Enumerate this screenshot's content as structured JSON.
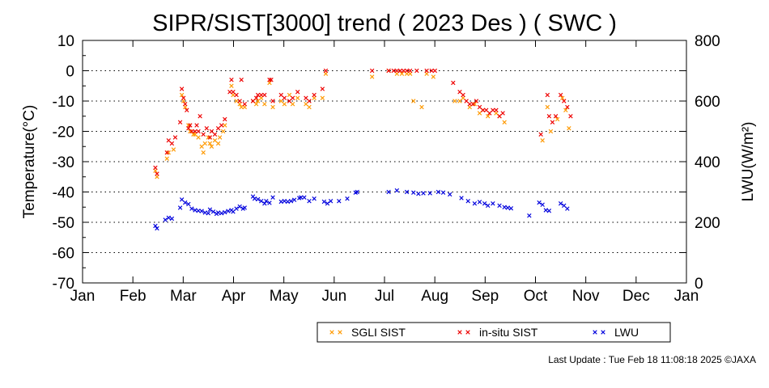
{
  "chart_data": {
    "type": "scatter",
    "title": "SIPR/SIST[3000] trend ( 2023 Des ) ( SWC )",
    "ylabel": "Temperature(°C)",
    "y2label": "LWU(W/m²)",
    "xlabel": "",
    "months": [
      "Jan",
      "Feb",
      "Mar",
      "Apr",
      "May",
      "Jun",
      "Jul",
      "Aug",
      "Sep",
      "Oct",
      "Nov",
      "Dec",
      "Jan"
    ],
    "ylim": [
      -70,
      10
    ],
    "y2lim": [
      0,
      800
    ],
    "yticks": [
      "10",
      "0",
      "-10",
      "-20",
      "-30",
      "-40",
      "-50",
      "-60",
      "-70"
    ],
    "y2ticks": [
      "800",
      "600",
      "400",
      "200",
      "0"
    ],
    "grid": "horizontal dotted",
    "legend_position": "below plot",
    "colors": {
      "sgli": "#ff9900",
      "insitu": "#ee0000",
      "lwu": "#0000dd"
    },
    "series": [
      {
        "name": "SGLI SIST",
        "axis": "left",
        "color": "#ff9900",
        "points": [
          [
            44,
            -33
          ],
          [
            45,
            -35
          ],
          [
            51,
            -29
          ],
          [
            52,
            -27
          ],
          [
            55,
            -26
          ],
          [
            60,
            -8
          ],
          [
            61,
            -10
          ],
          [
            62,
            -12
          ],
          [
            64,
            -18
          ],
          [
            65,
            -20
          ],
          [
            67,
            -21
          ],
          [
            68,
            -21
          ],
          [
            70,
            -22
          ],
          [
            72,
            -25
          ],
          [
            73,
            -27
          ],
          [
            74,
            -24
          ],
          [
            76,
            -22
          ],
          [
            77,
            -24
          ],
          [
            78,
            -25
          ],
          [
            80,
            -23
          ],
          [
            82,
            -24
          ],
          [
            83,
            -22
          ],
          [
            85,
            -20
          ],
          [
            86,
            -18
          ],
          [
            90,
            -5
          ],
          [
            91,
            -8
          ],
          [
            93,
            -10
          ],
          [
            95,
            -11
          ],
          [
            96,
            -12
          ],
          [
            98,
            -12
          ],
          [
            103,
            -10
          ],
          [
            105,
            -11
          ],
          [
            106,
            -10
          ],
          [
            108,
            -9
          ],
          [
            110,
            -11
          ],
          [
            113,
            -4
          ],
          [
            115,
            -12
          ],
          [
            120,
            -10
          ],
          [
            122,
            -11
          ],
          [
            125,
            -8
          ],
          [
            127,
            -11
          ],
          [
            130,
            -9
          ],
          [
            135,
            -11
          ],
          [
            137,
            -12
          ],
          [
            140,
            -9
          ],
          [
            145,
            -9
          ],
          [
            147,
            -1
          ],
          [
            175,
            -2
          ],
          [
            185,
            0
          ],
          [
            190,
            -1
          ],
          [
            193,
            -1
          ],
          [
            196,
            -1
          ],
          [
            198,
            -1
          ],
          [
            200,
            -10
          ],
          [
            205,
            -12
          ],
          [
            208,
            -1
          ],
          [
            212,
            -2
          ],
          [
            225,
            -10
          ],
          [
            228,
            -10
          ],
          [
            230,
            -9
          ],
          [
            234,
            -12
          ],
          [
            237,
            -11
          ],
          [
            240,
            -14
          ],
          [
            242,
            -13
          ],
          [
            245,
            -15
          ],
          [
            250,
            -14
          ],
          [
            252,
            -15
          ],
          [
            255,
            -17
          ],
          [
            278,
            -23
          ],
          [
            281,
            -12
          ],
          [
            283,
            -20
          ],
          [
            287,
            -16
          ],
          [
            290,
            -9
          ],
          [
            292,
            -13
          ],
          [
            294,
            -19
          ]
        ]
      },
      {
        "name": "in-situ SIST",
        "axis": "left",
        "color": "#ee0000",
        "points": [
          [
            44,
            -32
          ],
          [
            45,
            -34
          ],
          [
            51,
            -27
          ],
          [
            52,
            -23
          ],
          [
            54,
            -24
          ],
          [
            56,
            -22
          ],
          [
            59,
            -17
          ],
          [
            60,
            -6
          ],
          [
            61,
            -9
          ],
          [
            62,
            -11
          ],
          [
            63,
            -13
          ],
          [
            64,
            -19
          ],
          [
            65,
            -18
          ],
          [
            66,
            -20
          ],
          [
            68,
            -20
          ],
          [
            69,
            -18
          ],
          [
            70,
            -20
          ],
          [
            71,
            -15
          ],
          [
            73,
            -21
          ],
          [
            75,
            -19
          ],
          [
            77,
            -22
          ],
          [
            78,
            -20
          ],
          [
            80,
            -21
          ],
          [
            82,
            -19
          ],
          [
            84,
            -18
          ],
          [
            86,
            -16
          ],
          [
            89,
            -7
          ],
          [
            90,
            -3
          ],
          [
            91,
            -7
          ],
          [
            93,
            -8
          ],
          [
            95,
            -10
          ],
          [
            96,
            -3
          ],
          [
            98,
            -11
          ],
          [
            103,
            -10
          ],
          [
            105,
            -9
          ],
          [
            106,
            -8
          ],
          [
            108,
            -8
          ],
          [
            110,
            -8
          ],
          [
            113,
            -3
          ],
          [
            114,
            -3
          ],
          [
            115,
            -10
          ],
          [
            120,
            -8
          ],
          [
            122,
            -9
          ],
          [
            125,
            -10
          ],
          [
            127,
            -9
          ],
          [
            130,
            -7
          ],
          [
            135,
            -9
          ],
          [
            137,
            -10
          ],
          [
            140,
            -8
          ],
          [
            145,
            -6
          ],
          [
            147,
            0
          ],
          [
            175,
            0
          ],
          [
            185,
            0
          ],
          [
            188,
            0
          ],
          [
            190,
            0
          ],
          [
            192,
            0
          ],
          [
            194,
            0
          ],
          [
            196,
            0
          ],
          [
            198,
            0
          ],
          [
            202,
            0
          ],
          [
            208,
            0
          ],
          [
            211,
            0
          ],
          [
            213,
            0
          ],
          [
            224,
            -4
          ],
          [
            228,
            -7
          ],
          [
            230,
            -8
          ],
          [
            232,
            -10
          ],
          [
            234,
            -11
          ],
          [
            236,
            -11
          ],
          [
            238,
            -10
          ],
          [
            240,
            -12
          ],
          [
            242,
            -13
          ],
          [
            244,
            -13
          ],
          [
            246,
            -14
          ],
          [
            248,
            -13
          ],
          [
            250,
            -13
          ],
          [
            252,
            -15
          ],
          [
            254,
            -14
          ],
          [
            277,
            -21
          ],
          [
            281,
            -8
          ],
          [
            282,
            -15
          ],
          [
            284,
            -17
          ],
          [
            286,
            -15
          ],
          [
            289,
            -8
          ],
          [
            291,
            -10
          ],
          [
            293,
            -12
          ],
          [
            295,
            -15
          ]
        ]
      },
      {
        "name": "LWU",
        "axis": "right",
        "color": "#0000dd",
        "points": [
          [
            44,
            188
          ],
          [
            45,
            180
          ],
          [
            50,
            208
          ],
          [
            52,
            215
          ],
          [
            54,
            212
          ],
          [
            59,
            248
          ],
          [
            60,
            275
          ],
          [
            62,
            265
          ],
          [
            64,
            260
          ],
          [
            66,
            245
          ],
          [
            68,
            240
          ],
          [
            70,
            238
          ],
          [
            72,
            237
          ],
          [
            74,
            232
          ],
          [
            76,
            230
          ],
          [
            77,
            242
          ],
          [
            79,
            235
          ],
          [
            81,
            228
          ],
          [
            82,
            232
          ],
          [
            84,
            230
          ],
          [
            86,
            233
          ],
          [
            88,
            237
          ],
          [
            90,
            240
          ],
          [
            91,
            235
          ],
          [
            93,
            245
          ],
          [
            95,
            252
          ],
          [
            97,
            245
          ],
          [
            98,
            248
          ],
          [
            103,
            285
          ],
          [
            104,
            278
          ],
          [
            106,
            276
          ],
          [
            108,
            270
          ],
          [
            110,
            262
          ],
          [
            111,
            270
          ],
          [
            113,
            264
          ],
          [
            115,
            282
          ],
          [
            120,
            268
          ],
          [
            122,
            270
          ],
          [
            124,
            268
          ],
          [
            126,
            270
          ],
          [
            128,
            274
          ],
          [
            131,
            280
          ],
          [
            132,
            282
          ],
          [
            134,
            282
          ],
          [
            137,
            270
          ],
          [
            140,
            278
          ],
          [
            146,
            268
          ],
          [
            148,
            262
          ],
          [
            150,
            270
          ],
          [
            155,
            270
          ],
          [
            160,
            278
          ],
          [
            165,
            298
          ],
          [
            166,
            300
          ],
          [
            185,
            300
          ],
          [
            190,
            305
          ],
          [
            196,
            300
          ],
          [
            200,
            298
          ],
          [
            203,
            294
          ],
          [
            206,
            296
          ],
          [
            210,
            296
          ],
          [
            215,
            300
          ],
          [
            218,
            298
          ],
          [
            222,
            292
          ],
          [
            229,
            280
          ],
          [
            233,
            270
          ],
          [
            237,
            262
          ],
          [
            240,
            267
          ],
          [
            243,
            262
          ],
          [
            245,
            255
          ],
          [
            248,
            262
          ],
          [
            252,
            255
          ],
          [
            255,
            250
          ],
          [
            257,
            248
          ],
          [
            259,
            246
          ],
          [
            270,
            222
          ],
          [
            276,
            265
          ],
          [
            278,
            258
          ],
          [
            280,
            240
          ],
          [
            282,
            238
          ],
          [
            289,
            262
          ],
          [
            291,
            255
          ],
          [
            293,
            245
          ]
        ]
      }
    ]
  },
  "legend": {
    "items": [
      {
        "label": "SGLI SIST",
        "color": "#ff9900"
      },
      {
        "label": "in-situ SIST",
        "color": "#ee0000"
      },
      {
        "label": "LWU",
        "color": "#0000dd"
      }
    ]
  },
  "footer": {
    "text": "Last Update : Tue Feb 18 11:08:18 2025  ©JAXA"
  }
}
